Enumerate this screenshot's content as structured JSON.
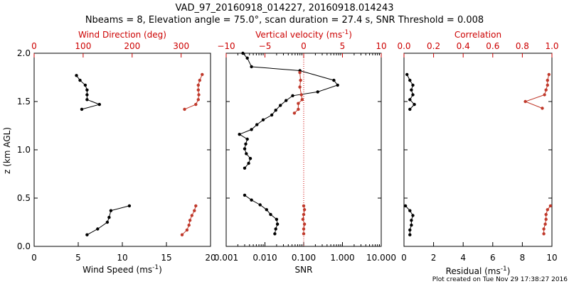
{
  "header": {
    "title": "VAD_97_20160918_014227, 20160918.014243",
    "subtitle": "Nbeams = 8, Elevation angle = 75.0°, scan duration = 27.4 s, SNR Threshold = 0.008"
  },
  "footer": {
    "plot_created": "Plot created on Tue Nov 29 17:38:27 2016"
  },
  "colors": {
    "black": "#000000",
    "red": "#cc0000",
    "red_series": "#c0392b"
  },
  "chart_data": [
    {
      "type": "line",
      "ylabel": "z (km AGL)",
      "ylim": [
        0,
        2.0
      ],
      "yticks": [
        "0.0",
        "0.5",
        "1.0",
        "1.5",
        "2.0"
      ],
      "x_bottom": {
        "label": "Wind Speed (ms",
        "label_sup": "-1",
        "label_end": ")",
        "range": [
          0,
          20
        ],
        "ticks": [
          "0",
          "5",
          "10",
          "15",
          "20"
        ]
      },
      "x_top": {
        "label": "Wind Direction (deg)",
        "range": [
          0,
          360
        ],
        "ticks": [
          "0",
          "100",
          "200",
          "300"
        ]
      },
      "series": [
        {
          "axis": "bottom",
          "color": "black",
          "segments": [
            [
              [
                10.8,
                0.42
              ],
              [
                8.7,
                0.37
              ],
              [
                8.5,
                0.3
              ],
              [
                8.3,
                0.25
              ],
              [
                7.2,
                0.18
              ],
              [
                6.0,
                0.12
              ]
            ],
            [
              [
                4.8,
                1.77
              ],
              [
                5.2,
                1.72
              ],
              [
                5.8,
                1.67
              ],
              [
                6.0,
                1.62
              ],
              [
                6.0,
                1.57
              ],
              [
                6.0,
                1.52
              ],
              [
                7.4,
                1.47
              ],
              [
                5.4,
                1.42
              ]
            ]
          ]
        },
        {
          "axis": "top",
          "color": "red",
          "segments": [
            [
              [
                330,
                0.42
              ],
              [
                327,
                0.37
              ],
              [
                322,
                0.32
              ],
              [
                318,
                0.27
              ],
              [
                316,
                0.22
              ],
              [
                312,
                0.17
              ],
              [
                302,
                0.12
              ]
            ],
            [
              [
                343,
                1.78
              ],
              [
                338,
                1.72
              ],
              [
                335,
                1.67
              ],
              [
                335,
                1.62
              ],
              [
                336,
                1.57
              ],
              [
                335,
                1.52
              ],
              [
                330,
                1.47
              ],
              [
                307,
                1.42
              ]
            ]
          ]
        }
      ]
    },
    {
      "type": "line",
      "ylim": [
        0,
        2.0
      ],
      "x_bottom": {
        "label": "SNR",
        "scale": "log",
        "range": [
          0.001,
          10
        ],
        "ticks": [
          "0.001",
          "0.010",
          "0.100",
          "1.000",
          "10.000"
        ]
      },
      "x_top": {
        "label": "Vertical velocity (ms",
        "label_sup": "-1",
        "label_end": ")",
        "range": [
          -10,
          10
        ],
        "ticks": [
          "−10",
          "−5",
          "0",
          "5",
          "10"
        ]
      },
      "reference_line": {
        "axis": "top",
        "x": 0,
        "style": "dotted",
        "color": "red"
      },
      "series": [
        {
          "axis": "bottom",
          "color": "black",
          "segments": [
            [
              [
                0.0027,
                2.0
              ],
              [
                0.0035,
                1.95
              ],
              [
                0.0045,
                1.86
              ],
              [
                0.08,
                1.82
              ],
              [
                0.6,
                1.72
              ],
              [
                0.75,
                1.67
              ],
              [
                0.23,
                1.6
              ],
              [
                0.052,
                1.56
              ],
              [
                0.035,
                1.51
              ],
              [
                0.025,
                1.46
              ],
              [
                0.019,
                1.41
              ],
              [
                0.015,
                1.36
              ],
              [
                0.009,
                1.31
              ],
              [
                0.0062,
                1.26
              ],
              [
                0.0045,
                1.21
              ],
              [
                0.0022,
                1.16
              ],
              [
                0.0035,
                1.11
              ],
              [
                0.0032,
                1.06
              ],
              [
                0.003,
                1.01
              ],
              [
                0.0033,
                0.96
              ],
              [
                0.0042,
                0.91
              ],
              [
                0.0038,
                0.86
              ],
              [
                0.003,
                0.81
              ]
            ],
            [
              [
                0.003,
                0.53
              ],
              [
                0.0045,
                0.48
              ],
              [
                0.0075,
                0.43
              ],
              [
                0.011,
                0.38
              ],
              [
                0.014,
                0.33
              ],
              [
                0.02,
                0.28
              ],
              [
                0.021,
                0.23
              ],
              [
                0.019,
                0.18
              ],
              [
                0.018,
                0.13
              ]
            ]
          ]
        },
        {
          "axis": "top",
          "color": "red",
          "segments": [
            [
              [
                -0.5,
                1.8
              ],
              [
                -0.4,
                1.72
              ],
              [
                -0.5,
                1.65
              ],
              [
                -0.3,
                1.57
              ],
              [
                -0.2,
                1.52
              ],
              [
                -0.7,
                1.48
              ],
              [
                -0.7,
                1.42
              ],
              [
                -1.2,
                1.38
              ]
            ],
            [
              [
                0.0,
                0.42
              ],
              [
                0.1,
                0.38
              ],
              [
                0.0,
                0.33
              ],
              [
                -0.1,
                0.28
              ],
              [
                0.1,
                0.23
              ],
              [
                0.0,
                0.18
              ],
              [
                0.0,
                0.13
              ]
            ]
          ]
        }
      ]
    },
    {
      "type": "line",
      "ylim": [
        0,
        2.0
      ],
      "x_bottom": {
        "label": "Residual (ms",
        "label_sup": "-1",
        "label_end": ")",
        "range": [
          0,
          10
        ],
        "ticks": [
          "0",
          "2",
          "4",
          "6",
          "8",
          "10"
        ]
      },
      "x_top": {
        "label": "Correlation",
        "range": [
          0,
          1.0
        ],
        "ticks": [
          "0.0",
          "0.2",
          "0.4",
          "0.6",
          "0.8",
          "1.0"
        ]
      },
      "series": [
        {
          "axis": "bottom",
          "color": "black",
          "segments": [
            [
              [
                0.1,
                0.42
              ],
              [
                0.4,
                0.37
              ],
              [
                0.6,
                0.32
              ],
              [
                0.5,
                0.27
              ],
              [
                0.5,
                0.22
              ],
              [
                0.4,
                0.17
              ],
              [
                0.4,
                0.12
              ]
            ],
            [
              [
                0.2,
                1.78
              ],
              [
                0.4,
                1.72
              ],
              [
                0.6,
                1.67
              ],
              [
                0.5,
                1.62
              ],
              [
                0.6,
                1.57
              ],
              [
                0.4,
                1.52
              ],
              [
                0.7,
                1.47
              ],
              [
                0.4,
                1.42
              ]
            ]
          ]
        },
        {
          "axis": "top",
          "color": "red",
          "segments": [
            [
              [
                0.99,
                0.42
              ],
              [
                0.97,
                0.38
              ],
              [
                0.96,
                0.33
              ],
              [
                0.96,
                0.28
              ],
              [
                0.955,
                0.23
              ],
              [
                0.945,
                0.18
              ],
              [
                0.945,
                0.13
              ]
            ],
            [
              [
                0.98,
                1.78
              ],
              [
                0.97,
                1.72
              ],
              [
                0.97,
                1.67
              ],
              [
                0.96,
                1.62
              ],
              [
                0.95,
                1.57
              ],
              [
                0.82,
                1.5
              ],
              [
                0.935,
                1.43
              ]
            ]
          ]
        }
      ]
    }
  ]
}
